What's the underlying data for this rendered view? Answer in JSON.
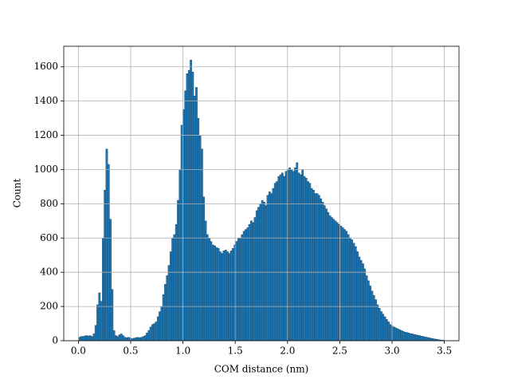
{
  "chart_data": {
    "type": "histogram",
    "x_label": "COM distance (nm)",
    "y_label": "Count",
    "color": "#1f77b4",
    "edgecolor": "#0d3d5f",
    "grid": true,
    "xlim": [
      -0.14,
      3.64
    ],
    "ylim": [
      0,
      1720
    ],
    "xticks": [
      {
        "value": 0,
        "label": "0.0"
      },
      0.5,
      {
        "value": 1,
        "label": "1.0"
      },
      1.5,
      {
        "value": 2,
        "label": "2.0"
      },
      2.5,
      {
        "value": 3,
        "label": "3.0"
      },
      3.5
    ],
    "yticks": [
      0,
      200,
      400,
      600,
      800,
      1000,
      1200,
      1400,
      1600
    ],
    "bins": [
      0,
      0.0175,
      0.035,
      0.0525,
      0.07,
      0.0875,
      0.105,
      0.1225,
      0.14,
      0.1575,
      0.175,
      0.1925,
      0.21,
      0.2275,
      0.245,
      0.2625,
      0.28,
      0.2975,
      0.315,
      0.3325,
      0.35,
      0.3675,
      0.385,
      0.4025,
      0.42,
      0.4375,
      0.455,
      0.4725,
      0.49,
      0.5075,
      0.525,
      0.5425,
      0.56,
      0.5775,
      0.595,
      0.6125,
      0.63,
      0.6475,
      0.665,
      0.6825,
      0.7,
      0.7175,
      0.735,
      0.7525,
      0.77,
      0.7875,
      0.805,
      0.8225,
      0.84,
      0.8575,
      0.875,
      0.8925,
      0.91,
      0.9275,
      0.945,
      0.9625,
      0.98,
      0.9975,
      1.015,
      1.0325,
      1.05,
      1.0675,
      1.085,
      1.1025,
      1.12,
      1.1375,
      1.155,
      1.1725,
      1.19,
      1.2075,
      1.225,
      1.2425,
      1.26,
      1.2775,
      1.295,
      1.3125,
      1.33,
      1.3475,
      1.365,
      1.3825,
      1.4,
      1.4175,
      1.435,
      1.4525,
      1.47,
      1.4875,
      1.505,
      1.5225,
      1.54,
      1.5575,
      1.575,
      1.5925,
      1.61,
      1.6275,
      1.645,
      1.6625,
      1.68,
      1.6975,
      1.715,
      1.7325,
      1.75,
      1.7675,
      1.785,
      1.8025,
      1.82,
      1.8375,
      1.855,
      1.8725,
      1.89,
      1.9075,
      1.925,
      1.9425,
      1.96,
      1.9775,
      1.995,
      2.0125,
      2.03,
      2.0475,
      2.065,
      2.0825,
      2.1,
      2.1175,
      2.135,
      2.1525,
      2.17,
      2.1875,
      2.205,
      2.2225,
      2.24,
      2.2575,
      2.275,
      2.2925,
      2.31,
      2.3275,
      2.345,
      2.3625,
      2.38,
      2.3975,
      2.415,
      2.4325,
      2.45,
      2.4675,
      2.485,
      2.5025,
      2.52,
      2.5375,
      2.555,
      2.5725,
      2.59,
      2.6075,
      2.625,
      2.6425,
      2.66,
      2.6775,
      2.695,
      2.7125,
      2.73,
      2.7475,
      2.765,
      2.7825,
      2.8,
      2.8175,
      2.835,
      2.8525,
      2.87,
      2.8875,
      2.905,
      2.9225,
      2.94,
      2.9575,
      2.975,
      2.9925,
      3.01,
      3.0275,
      3.045,
      3.0625,
      3.08,
      3.0975,
      3.115,
      3.1325,
      3.15,
      3.1675,
      3.185,
      3.2025,
      3.22,
      3.2375,
      3.255,
      3.2725,
      3.29,
      3.3075,
      3.325,
      3.3425,
      3.36,
      3.3775,
      3.395,
      3.4125,
      3.43,
      3.4475,
      3.465,
      3.4825,
      3.5
    ],
    "counts": [
      20,
      25,
      25,
      28,
      30,
      28,
      30,
      25,
      40,
      90,
      210,
      280,
      230,
      600,
      880,
      1120,
      1030,
      710,
      300,
      60,
      30,
      25,
      35,
      40,
      30,
      20,
      18,
      20,
      15,
      12,
      15,
      18,
      20,
      18,
      20,
      25,
      30,
      45,
      60,
      80,
      95,
      100,
      110,
      140,
      170,
      200,
      270,
      330,
      380,
      440,
      520,
      600,
      620,
      680,
      820,
      1000,
      1260,
      1350,
      1460,
      1560,
      1580,
      1640,
      1570,
      1430,
      1480,
      1300,
      1200,
      1120,
      840,
      700,
      620,
      600,
      580,
      560,
      555,
      545,
      540,
      520,
      510,
      525,
      530,
      520,
      510,
      525,
      540,
      560,
      580,
      600,
      600,
      620,
      640,
      650,
      660,
      680,
      700,
      690,
      720,
      760,
      780,
      800,
      820,
      810,
      790,
      850,
      870,
      860,
      890,
      920,
      930,
      960,
      970,
      980,
      960,
      990,
      1000,
      1010,
      1000,
      990,
      1010,
      1040,
      980,
      970,
      1000,
      960,
      950,
      930,
      920,
      890,
      880,
      860,
      860,
      850,
      830,
      810,
      790,
      770,
      750,
      730,
      720,
      710,
      700,
      690,
      680,
      670,
      660,
      650,
      640,
      620,
      600,
      590,
      570,
      550,
      520,
      490,
      470,
      450,
      420,
      380,
      350,
      320,
      290,
      265,
      240,
      210,
      190,
      170,
      155,
      140,
      125,
      110,
      95,
      85,
      80,
      75,
      70,
      65,
      60,
      55,
      50,
      48,
      45,
      42,
      40,
      37,
      35,
      32,
      30,
      27,
      25,
      22,
      20,
      18,
      15,
      13,
      11,
      9,
      7,
      5,
      4,
      3
    ]
  }
}
